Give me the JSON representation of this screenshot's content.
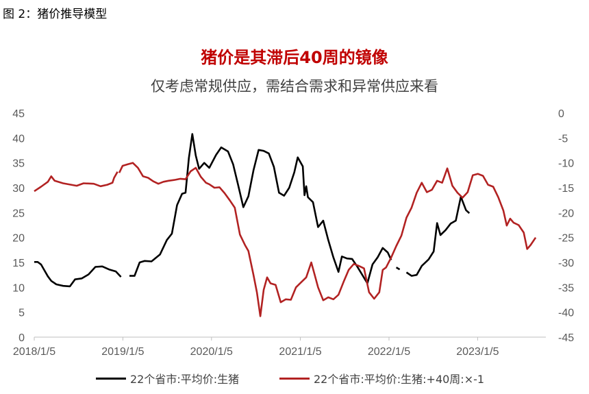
{
  "figure_caption": "图 2：猪价推导模型",
  "chart_data": {
    "type": "line",
    "title": "猪价是其滞后40周的镜像",
    "subtitle": "仅考虑常规供应，需结合需求和异常供应来看",
    "title_color": "#c00000",
    "x_tick_labels": [
      "2018/1/5",
      "2019/1/5",
      "2020/1/5",
      "2021/1/5",
      "2022/1/5",
      "2023/1/5"
    ],
    "y_left": {
      "ticks": [
        0,
        5,
        10,
        15,
        20,
        25,
        30,
        35,
        40,
        45
      ],
      "ylim": [
        0,
        45
      ]
    },
    "y_right": {
      "ticks": [
        0,
        -5,
        -10,
        -15,
        -20,
        -25,
        -30,
        -35,
        -40,
        -45
      ],
      "ylim": [
        -45,
        0
      ]
    },
    "grid": false,
    "legend_position": "bottom",
    "series": [
      {
        "name": "22个省市:平均价:生猪",
        "axis": "left",
        "color": "#000000",
        "segments": [
          [
            [
              "2018-01-05",
              15.1
            ],
            [
              "2018-01-19",
              15.1
            ],
            [
              "2018-02-02",
              14.6
            ],
            [
              "2018-02-16",
              13.4
            ],
            [
              "2018-03-02",
              12.2
            ],
            [
              "2018-03-16",
              11.3
            ],
            [
              "2018-04-06",
              10.6
            ],
            [
              "2018-05-04",
              10.3
            ],
            [
              "2018-06-01",
              10.2
            ],
            [
              "2018-06-22",
              11.6
            ],
            [
              "2018-07-20",
              11.8
            ],
            [
              "2018-08-17",
              12.6
            ],
            [
              "2018-09-14",
              14.1
            ],
            [
              "2018-10-12",
              14.2
            ],
            [
              "2018-11-09",
              13.6
            ],
            [
              "2018-12-07",
              13.2
            ],
            [
              "2018-12-28",
              12.1
            ]
          ],
          [
            [
              "2019-02-01",
              12.3
            ],
            [
              "2019-02-22",
              12.3
            ],
            [
              "2019-03-15",
              15.0
            ],
            [
              "2019-04-05",
              15.3
            ],
            [
              "2019-05-03",
              15.2
            ],
            [
              "2019-06-07",
              16.6
            ],
            [
              "2019-07-05",
              19.5
            ],
            [
              "2019-07-26",
              20.8
            ],
            [
              "2019-08-16",
              26.5
            ],
            [
              "2019-09-06",
              28.8
            ],
            [
              "2019-09-20",
              29.0
            ],
            [
              "2019-10-04",
              36.0
            ],
            [
              "2019-10-18",
              40.8
            ],
            [
              "2019-11-01",
              36.5
            ],
            [
              "2019-11-15",
              33.8
            ],
            [
              "2019-12-06",
              35.0
            ],
            [
              "2019-12-27",
              34.0
            ],
            [
              "2020-01-24",
              36.6
            ],
            [
              "2020-02-14",
              38.1
            ],
            [
              "2020-03-13",
              37.3
            ],
            [
              "2020-04-03",
              34.7
            ],
            [
              "2020-04-24",
              30.5
            ],
            [
              "2020-05-15",
              26.1
            ],
            [
              "2020-06-05",
              28.3
            ],
            [
              "2020-06-26",
              33.5
            ],
            [
              "2020-07-17",
              37.6
            ],
            [
              "2020-08-07",
              37.4
            ],
            [
              "2020-08-28",
              36.9
            ],
            [
              "2020-09-18",
              34.2
            ],
            [
              "2020-10-09",
              29.0
            ],
            [
              "2020-10-30",
              28.4
            ],
            [
              "2020-11-20",
              30.0
            ],
            [
              "2020-12-11",
              33.1
            ],
            [
              "2020-12-25",
              36.1
            ],
            [
              "2021-01-15",
              34.3
            ],
            [
              "2021-01-22",
              28.5
            ],
            [
              "2021-01-29",
              30.3
            ],
            [
              "2021-02-05",
              28.1
            ],
            [
              "2021-02-26",
              27.1
            ],
            [
              "2021-03-19",
              22.1
            ],
            [
              "2021-04-09",
              23.4
            ],
            [
              "2021-04-30",
              19.5
            ],
            [
              "2021-05-21",
              16.0
            ],
            [
              "2021-06-11",
              13.1
            ],
            [
              "2021-06-25",
              16.2
            ],
            [
              "2021-07-16",
              15.8
            ],
            [
              "2021-08-06",
              15.7
            ],
            [
              "2021-08-27",
              14.2
            ],
            [
              "2021-09-17",
              12.5
            ],
            [
              "2021-10-08",
              10.8
            ],
            [
              "2021-10-29",
              14.6
            ],
            [
              "2021-11-19",
              16.0
            ],
            [
              "2021-12-10",
              17.9
            ],
            [
              "2021-12-31",
              17.0
            ],
            [
              "2022-01-14",
              15.5
            ]
          ],
          [
            [
              "2022-02-04",
              14.0
            ],
            [
              "2022-02-18",
              13.6
            ]
          ],
          [
            [
              "2022-03-18",
              13.0
            ],
            [
              "2022-04-08",
              12.3
            ],
            [
              "2022-04-29",
              12.5
            ],
            [
              "2022-05-20",
              14.3
            ],
            [
              "2022-06-17",
              15.6
            ],
            [
              "2022-07-08",
              17.2
            ],
            [
              "2022-07-22",
              22.9
            ],
            [
              "2022-08-05",
              20.5
            ],
            [
              "2022-08-26",
              21.5
            ],
            [
              "2022-09-16",
              22.8
            ],
            [
              "2022-10-07",
              23.4
            ],
            [
              "2022-10-28",
              28.2
            ],
            [
              "2022-11-18",
              25.5
            ],
            [
              "2022-12-02",
              24.9
            ]
          ]
        ]
      },
      {
        "name": "22个省市:平均价:生猪:+40周:×-1",
        "axis": "right",
        "color": "#b22222",
        "segments": [
          [
            [
              "2018-01-05",
              -15.7
            ],
            [
              "2018-02-02",
              -14.8
            ],
            [
              "2018-03-02",
              -13.8
            ],
            [
              "2018-03-16",
              -12.7
            ],
            [
              "2018-03-30",
              -13.6
            ],
            [
              "2018-05-04",
              -14.1
            ],
            [
              "2018-06-29",
              -14.6
            ],
            [
              "2018-07-27",
              -14.1
            ],
            [
              "2018-09-07",
              -14.2
            ],
            [
              "2018-10-05",
              -14.7
            ],
            [
              "2018-11-02",
              -14.4
            ],
            [
              "2018-11-23",
              -14.0
            ],
            [
              "2018-11-30",
              -13.0
            ],
            [
              "2018-12-14",
              -11.8
            ]
          ],
          [
            [
              "2018-12-21",
              -12.0
            ],
            [
              "2019-01-04",
              -10.6
            ],
            [
              "2019-01-25",
              -10.3
            ],
            [
              "2019-02-15",
              -10.0
            ],
            [
              "2019-03-08",
              -11.0
            ],
            [
              "2019-03-29",
              -12.7
            ],
            [
              "2019-04-19",
              -13.0
            ],
            [
              "2019-05-10",
              -13.7
            ],
            [
              "2019-05-31",
              -14.2
            ],
            [
              "2019-06-21",
              -13.8
            ],
            [
              "2019-07-12",
              -13.6
            ],
            [
              "2019-08-09",
              -13.4
            ],
            [
              "2019-08-30",
              -13.2
            ],
            [
              "2019-09-20",
              -13.3
            ],
            [
              "2019-10-11",
              -11.7
            ],
            [
              "2019-11-01",
              -11.0
            ],
            [
              "2019-11-22",
              -12.8
            ],
            [
              "2019-12-13",
              -14.0
            ],
            [
              "2019-12-27",
              -14.3
            ],
            [
              "2020-01-17",
              -15.0
            ],
            [
              "2020-02-07",
              -14.9
            ],
            [
              "2020-02-28",
              -16.1
            ],
            [
              "2020-03-20",
              -17.5
            ],
            [
              "2020-04-10",
              -19.0
            ],
            [
              "2020-05-01",
              -24.4
            ],
            [
              "2020-05-22",
              -26.5
            ],
            [
              "2020-06-05",
              -27.7
            ],
            [
              "2020-06-26",
              -32.5
            ],
            [
              "2020-07-10",
              -36.0
            ],
            [
              "2020-07-24",
              -40.8
            ],
            [
              "2020-08-07",
              -35.5
            ],
            [
              "2020-08-21",
              -33.0
            ],
            [
              "2020-09-04",
              -34.2
            ],
            [
              "2020-09-25",
              -34.5
            ],
            [
              "2020-10-16",
              -38.0
            ],
            [
              "2020-11-06",
              -37.4
            ],
            [
              "2020-11-27",
              -37.5
            ],
            [
              "2020-12-18",
              -35.0
            ],
            [
              "2021-01-08",
              -34.0
            ],
            [
              "2021-01-29",
              -33.0
            ],
            [
              "2021-02-19",
              -30.0
            ],
            [
              "2021-03-05",
              -32.5
            ],
            [
              "2021-03-19",
              -35.0
            ],
            [
              "2021-04-09",
              -37.6
            ],
            [
              "2021-04-30",
              -37.0
            ],
            [
              "2021-05-21",
              -37.4
            ],
            [
              "2021-06-11",
              -36.5
            ],
            [
              "2021-07-02",
              -33.9
            ],
            [
              "2021-07-23",
              -31.5
            ],
            [
              "2021-08-13",
              -30.3
            ],
            [
              "2021-09-03",
              -30.7
            ],
            [
              "2021-09-24",
              -31.2
            ],
            [
              "2021-10-15",
              -36.0
            ],
            [
              "2021-11-05",
              -37.3
            ],
            [
              "2021-11-26",
              -36.0
            ],
            [
              "2021-12-10",
              -31.5
            ],
            [
              "2021-12-24",
              -31.0
            ],
            [
              "2022-01-14",
              -29.0
            ],
            [
              "2022-02-04",
              -26.7
            ],
            [
              "2022-02-25",
              -24.6
            ],
            [
              "2022-03-18",
              -21.0
            ],
            [
              "2022-04-08",
              -19.0
            ],
            [
              "2022-04-29",
              -16.0
            ],
            [
              "2022-05-20",
              -14.0
            ],
            [
              "2022-06-10",
              -15.9
            ],
            [
              "2022-07-01",
              -15.4
            ],
            [
              "2022-07-22",
              -13.6
            ],
            [
              "2022-08-12",
              -14.0
            ],
            [
              "2022-09-02",
              -11.1
            ],
            [
              "2022-09-23",
              -14.6
            ],
            [
              "2022-10-14",
              -16.0
            ],
            [
              "2022-11-04",
              -17.0
            ],
            [
              "2022-11-25",
              -15.9
            ],
            [
              "2022-12-16",
              -12.5
            ],
            [
              "2023-01-06",
              -12.2
            ],
            [
              "2023-01-27",
              -12.6
            ],
            [
              "2023-02-17",
              -14.4
            ],
            [
              "2023-03-10",
              -14.8
            ],
            [
              "2023-03-31",
              -16.9
            ],
            [
              "2023-04-21",
              -19.6
            ],
            [
              "2023-05-05",
              -22.6
            ],
            [
              "2023-05-19",
              -21.2
            ],
            [
              "2023-06-02",
              -22.0
            ],
            [
              "2023-06-23",
              -22.5
            ],
            [
              "2023-07-14",
              -24.0
            ],
            [
              "2023-07-28",
              -27.3
            ],
            [
              "2023-08-11",
              -26.5
            ],
            [
              "2023-09-01",
              -25.0
            ]
          ]
        ]
      }
    ]
  }
}
